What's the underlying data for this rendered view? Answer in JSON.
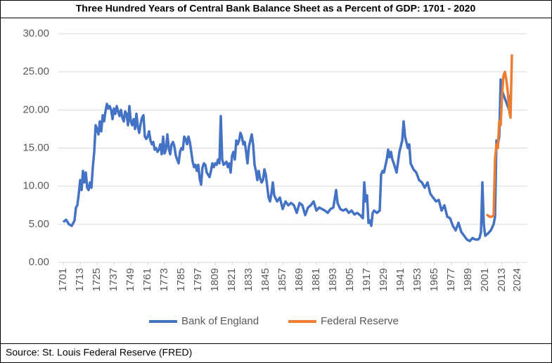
{
  "chart_data": {
    "type": "line",
    "title": "Three Hundred Years of Central Bank Balance Sheet as a Percent of GDP: 1701 - 2020",
    "source": "Source: St. Louis Federal Reserve (FRED)",
    "xlim": [
      1697,
      2031
    ],
    "xticks": [
      1701,
      1713,
      1725,
      1737,
      1749,
      1761,
      1773,
      1785,
      1797,
      1809,
      1821,
      1833,
      1845,
      1857,
      1869,
      1881,
      1893,
      1905,
      1917,
      1929,
      1941,
      1953,
      1965,
      1977,
      1989,
      2001,
      2013,
      2024
    ],
    "ylim": [
      0,
      30
    ],
    "yticks": [
      {
        "value": 0,
        "label": "0.00"
      },
      {
        "value": 5,
        "label": "5.00"
      },
      {
        "value": 10,
        "label": "10.00"
      },
      {
        "value": 15,
        "label": "15.00"
      },
      {
        "value": 20,
        "label": "20.00"
      },
      {
        "value": 25,
        "label": "25.00"
      },
      {
        "value": 30,
        "label": "30.00"
      }
    ],
    "grid": true,
    "legend": "bottom",
    "series": [
      {
        "name": "Bank of England",
        "color": "#4472c4",
        "x": [
          1701,
          1703,
          1705,
          1707,
          1709,
          1710,
          1711,
          1712,
          1713,
          1714,
          1715,
          1716,
          1717,
          1718,
          1719,
          1720,
          1721,
          1722,
          1723,
          1724,
          1725,
          1726,
          1727,
          1728,
          1729,
          1730,
          1731,
          1732,
          1733,
          1734,
          1735,
          1736,
          1737,
          1738,
          1739,
          1740,
          1741,
          1742,
          1743,
          1744,
          1745,
          1746,
          1747,
          1748,
          1749,
          1750,
          1751,
          1752,
          1753,
          1754,
          1755,
          1756,
          1757,
          1758,
          1759,
          1760,
          1761,
          1762,
          1763,
          1764,
          1765,
          1766,
          1767,
          1768,
          1769,
          1770,
          1771,
          1772,
          1773,
          1774,
          1775,
          1776,
          1777,
          1778,
          1779,
          1780,
          1781,
          1782,
          1783,
          1784,
          1785,
          1786,
          1787,
          1788,
          1789,
          1790,
          1791,
          1792,
          1793,
          1794,
          1795,
          1796,
          1797,
          1798,
          1799,
          1800,
          1801,
          1802,
          1803,
          1804,
          1805,
          1806,
          1807,
          1808,
          1809,
          1810,
          1811,
          1812,
          1813,
          1814,
          1815,
          1816,
          1817,
          1818,
          1819,
          1820,
          1821,
          1822,
          1823,
          1824,
          1825,
          1826,
          1827,
          1828,
          1829,
          1830,
          1831,
          1832,
          1833,
          1834,
          1835,
          1836,
          1837,
          1838,
          1839,
          1840,
          1841,
          1842,
          1843,
          1844,
          1845,
          1846,
          1847,
          1848,
          1849,
          1850,
          1851,
          1853,
          1855,
          1857,
          1859,
          1861,
          1863,
          1865,
          1867,
          1869,
          1871,
          1873,
          1875,
          1877,
          1879,
          1881,
          1883,
          1885,
          1887,
          1889,
          1891,
          1893,
          1895,
          1896,
          1898,
          1900,
          1902,
          1904,
          1906,
          1908,
          1910,
          1912,
          1914,
          1915,
          1916,
          1917,
          1918,
          1919,
          1920,
          1921,
          1922,
          1924,
          1926,
          1927,
          1928,
          1929,
          1931,
          1932,
          1933,
          1934,
          1935,
          1936,
          1938,
          1940,
          1942,
          1943,
          1944,
          1946,
          1947,
          1948,
          1950,
          1952,
          1954,
          1956,
          1958,
          1960,
          1962,
          1964,
          1966,
          1968,
          1970,
          1972,
          1974,
          1976,
          1978,
          1980,
          1982,
          1984,
          1986,
          1988,
          1990,
          1992,
          1994,
          1996,
          1997,
          1998,
          1999,
          2000,
          2001,
          2003,
          2005,
          2007,
          2008,
          2009,
          2010,
          2011,
          2012,
          2013,
          2014,
          2015,
          2016,
          2017,
          2018,
          2019
        ],
        "values": [
          5.3,
          5.6,
          5.0,
          4.8,
          5.5,
          7.2,
          7.5,
          9.0,
          10.8,
          9.5,
          12.0,
          10.5,
          11.8,
          9.8,
          9.5,
          10.5,
          9.8,
          12.5,
          14.5,
          18.0,
          17.5,
          16.8,
          18.5,
          17.2,
          19.3,
          18.5,
          19.8,
          20.8,
          20.2,
          20.5,
          20.0,
          18.8,
          20.2,
          19.5,
          20.5,
          19.8,
          19.2,
          20.0,
          19.0,
          18.5,
          19.8,
          19.5,
          18.0,
          20.5,
          18.5,
          18.0,
          18.8,
          17.5,
          19.5,
          17.8,
          17.0,
          18.2,
          19.0,
          19.3,
          16.5,
          16.2,
          16.5,
          17.2,
          16.0,
          15.5,
          15.8,
          14.8,
          15.0,
          14.5,
          14.8,
          15.5,
          14.2,
          16.5,
          14.3,
          14.8,
          16.8,
          15.0,
          14.2,
          15.5,
          15.8,
          15.2,
          14.0,
          13.5,
          13.0,
          14.5,
          15.0,
          14.8,
          16.5,
          16.2,
          15.5,
          16.5,
          15.8,
          14.5,
          13.2,
          12.5,
          12.8,
          12.0,
          12.8,
          11.0,
          10.2,
          12.5,
          13.0,
          12.8,
          11.8,
          11.5,
          11.2,
          12.0,
          13.0,
          12.5,
          13.0,
          12.8,
          13.5,
          13.0,
          19.2,
          13.5,
          12.8,
          13.0,
          13.2,
          12.5,
          13.0,
          11.8,
          14.0,
          14.5,
          13.5,
          16.0,
          15.5,
          16.0,
          17.0,
          16.5,
          15.5,
          15.8,
          14.5,
          13.0,
          15.2,
          16.0,
          16.8,
          15.5,
          12.8,
          12.0,
          10.8,
          12.0,
          11.0,
          10.5,
          10.8,
          12.2,
          11.5,
          10.0,
          8.5,
          8.0,
          9.0,
          10.5,
          8.8,
          8.0,
          8.5,
          7.0,
          8.0,
          7.5,
          7.8,
          7.5,
          6.5,
          7.8,
          7.5,
          6.2,
          7.2,
          7.5,
          8.0,
          6.8,
          7.2,
          7.0,
          6.8,
          6.5,
          7.0,
          7.2,
          9.5,
          7.8,
          7.0,
          6.8,
          7.0,
          6.5,
          6.8,
          6.3,
          6.5,
          6.2,
          5.8,
          10.5,
          8.0,
          8.8,
          5.2,
          5.5,
          4.8,
          6.5,
          6.8,
          6.5,
          6.8,
          11.5,
          12.0,
          11.8,
          13.5,
          14.8,
          13.8,
          14.5,
          13.5,
          13.0,
          11.8,
          14.5,
          16.0,
          18.5,
          16.5,
          15.0,
          15.5,
          13.0,
          12.2,
          11.8,
          10.8,
          10.5,
          9.8,
          10.5,
          9.0,
          8.5,
          8.0,
          8.2,
          6.8,
          7.5,
          6.0,
          5.8,
          4.8,
          4.2,
          5.2,
          4.0,
          3.5,
          3.0,
          2.8,
          3.2,
          3.0,
          3.0,
          3.2,
          4.0,
          10.5,
          5.0,
          3.5,
          3.8,
          4.2,
          5.0,
          6.0,
          16.0,
          15.5,
          16.5,
          24.0,
          22.5,
          22.0,
          21.5,
          21.0,
          20.5,
          20.0,
          22.0
        ]
      },
      {
        "name": "Federal Reserve",
        "color": "#ed7d31",
        "x": [
          2002,
          2004,
          2006,
          2007,
          2008,
          2009,
          2010,
          2011,
          2012,
          2013,
          2014,
          2015,
          2016,
          2017,
          2018,
          2019,
          2020
        ],
        "values": [
          6.3,
          6.0,
          6.0,
          6.2,
          13.5,
          15.5,
          15.0,
          18.5,
          18.0,
          22.0,
          24.5,
          25.0,
          24.0,
          22.5,
          20.0,
          19.0,
          27.3
        ]
      }
    ]
  }
}
